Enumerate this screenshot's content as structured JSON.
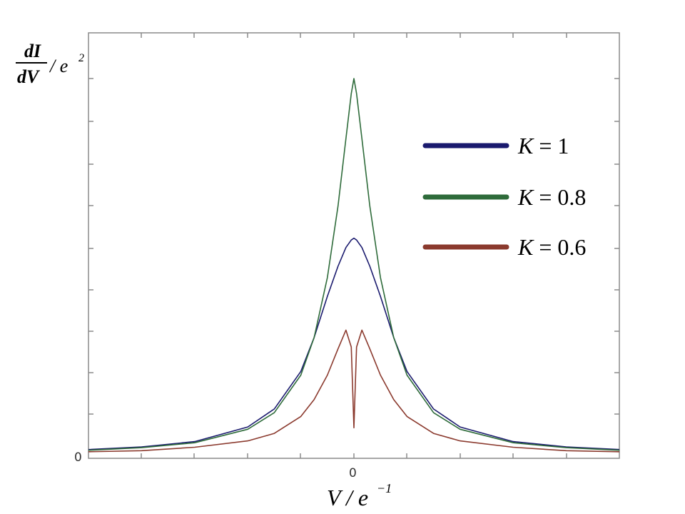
{
  "chart_data": {
    "type": "line",
    "ylabel": {
      "numerator": "dI",
      "denominator": "dV",
      "suffix": "/ e",
      "suffix_exp": "2"
    },
    "xlabel": {
      "base": "V / e",
      "exp": "−1"
    },
    "x_tick_label": "0",
    "y_tick_label": "0",
    "xlim": [
      -1,
      1
    ],
    "ylim": [
      0,
      1
    ],
    "grid": false,
    "legend_position": "upper-right",
    "x": [
      -1,
      -0.8,
      -0.6,
      -0.4,
      -0.3,
      -0.2,
      -0.15,
      -0.1,
      -0.06,
      -0.03,
      -0.01,
      0,
      0.01,
      0.03,
      0.06,
      0.1,
      0.15,
      0.2,
      0.3,
      0.4,
      0.6,
      0.8,
      1
    ],
    "series": [
      {
        "name": "K = 1",
        "label_lhs": "K",
        "label_rhs": "1",
        "color": "#1a1a6e",
        "values": [
          0.012,
          0.019,
          0.033,
          0.072,
          0.12,
          0.22,
          0.31,
          0.42,
          0.5,
          0.55,
          0.57,
          0.575,
          0.57,
          0.55,
          0.5,
          0.42,
          0.31,
          0.22,
          0.12,
          0.072,
          0.033,
          0.019,
          0.012
        ]
      },
      {
        "name": "K = 0.8",
        "label_lhs": "K",
        "label_rhs": "0.8",
        "color": "#2e6b3a",
        "values": [
          0.01,
          0.017,
          0.03,
          0.066,
          0.11,
          0.21,
          0.31,
          0.47,
          0.66,
          0.84,
          0.96,
          1.0,
          0.96,
          0.84,
          0.66,
          0.47,
          0.31,
          0.21,
          0.11,
          0.066,
          0.03,
          0.017,
          0.01
        ]
      },
      {
        "name": "K = 0.6",
        "label_lhs": "K",
        "label_rhs": "0.6",
        "color": "#8b3a2e",
        "values": [
          0.006,
          0.009,
          0.018,
          0.035,
          0.055,
          0.1,
          0.145,
          0.21,
          0.28,
          0.33,
          0.285,
          0.07,
          0.285,
          0.33,
          0.28,
          0.21,
          0.145,
          0.1,
          0.055,
          0.035,
          0.018,
          0.009,
          0.006
        ]
      }
    ]
  }
}
